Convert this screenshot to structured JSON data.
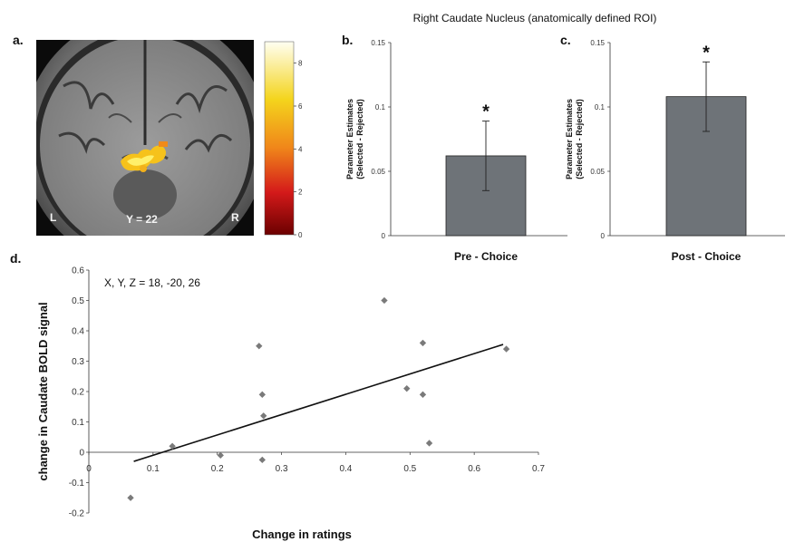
{
  "figure_title": "Right Caudate Nucleus (anatomically defined ROI)",
  "panels": {
    "a": "a.",
    "b": "b.",
    "c": "c.",
    "d": "d."
  },
  "brain": {
    "left_label": "L",
    "right_label": "R",
    "slice_label": "Y = 22",
    "colorbar_ticks": [
      "0",
      "2",
      "4",
      "6",
      "8"
    ],
    "colorbar_range": [
      0,
      9
    ]
  },
  "chart_data": [
    {
      "type": "bar",
      "panel": "b",
      "categories": [
        "Pre - Choice"
      ],
      "values": [
        0.062
      ],
      "error": [
        0.027
      ],
      "significance": "*",
      "ylim": [
        0,
        0.15
      ],
      "yticks": [
        "0",
        "0.05",
        "0.1",
        "0.15"
      ],
      "ylabel_line1": "Parameter Estimates",
      "ylabel_line2": "(Selected - Rejected)",
      "xlabel": "",
      "bar_color": "#6e7378"
    },
    {
      "type": "bar",
      "panel": "c",
      "categories": [
        "Post - Choice"
      ],
      "values": [
        0.108
      ],
      "error": [
        0.027
      ],
      "significance": "*",
      "ylim": [
        0,
        0.15
      ],
      "yticks": [
        "0",
        "0.05",
        "0.1",
        "0.15"
      ],
      "ylabel_line1": "Parameter Estimates",
      "ylabel_line2": "(Selected - Rejected)",
      "xlabel": "",
      "bar_color": "#6e7378"
    },
    {
      "type": "scatter",
      "panel": "d",
      "x": [
        0.065,
        0.13,
        0.205,
        0.265,
        0.27,
        0.27,
        0.272,
        0.46,
        0.495,
        0.52,
        0.52,
        0.53,
        0.65
      ],
      "y": [
        -0.15,
        0.02,
        -0.01,
        0.35,
        -0.025,
        0.19,
        0.12,
        0.5,
        0.21,
        0.36,
        0.19,
        0.03,
        0.34
      ],
      "fit_line": {
        "x": [
          0.07,
          0.645
        ],
        "y": [
          -0.03,
          0.355
        ]
      },
      "xlim": [
        0,
        0.7
      ],
      "ylim": [
        -0.2,
        0.6
      ],
      "xticks": [
        "0",
        "0.1",
        "0.2",
        "0.3",
        "0.4",
        "0.5",
        "0.6",
        "0.7"
      ],
      "yticks": [
        "-0.2",
        "-0.1",
        "0",
        "0.1",
        "0.2",
        "0.3",
        "0.4",
        "0.5",
        "0.6"
      ],
      "xlabel": "Change in ratings",
      "ylabel": "change in Caudate BOLD signal",
      "annotation": "X, Y, Z = 18,  -20, 26",
      "marker_color": "#7a7a7a",
      "line_color": "#111111"
    }
  ]
}
